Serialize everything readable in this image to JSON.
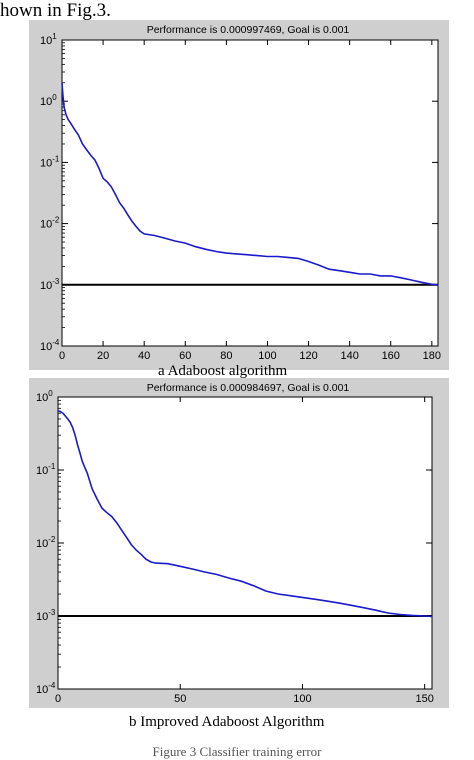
{
  "header_text": "hown in Fig.3.",
  "figure_caption": "Figure 3   Classifier training error",
  "chart_data": [
    {
      "type": "line",
      "title": "Performance is 0.000997469, Goal is 0.001",
      "caption": "a  Adaboost algorithm",
      "y_scale": "log",
      "ylim_exp": [
        -4,
        1
      ],
      "xlim": [
        0,
        183
      ],
      "x_ticks": [
        0,
        20,
        40,
        60,
        80,
        100,
        120,
        140,
        160,
        180
      ],
      "x_tick_labels": [
        "0",
        "20",
        "40",
        "60",
        "80",
        "100",
        "120",
        "140",
        "160",
        "180"
      ],
      "y_ticks_exp": [
        -4,
        -3,
        -2,
        -1,
        0,
        1
      ],
      "goal": 0.001,
      "series": [
        {
          "color": "#1a1acc",
          "x": [
            0,
            0.5,
            1,
            2,
            3,
            4,
            6,
            8,
            10,
            12,
            14,
            16,
            18,
            20,
            22,
            24,
            26,
            28,
            30,
            32,
            34,
            36,
            38,
            40,
            45,
            50,
            55,
            60,
            65,
            70,
            75,
            80,
            85,
            90,
            95,
            100,
            105,
            110,
            115,
            120,
            125,
            130,
            135,
            140,
            145,
            150,
            155,
            160,
            165,
            170,
            175,
            180,
            183
          ],
          "y": [
            2.0,
            1.2,
            0.8,
            0.6,
            0.5,
            0.45,
            0.35,
            0.28,
            0.2,
            0.16,
            0.13,
            0.11,
            0.08,
            0.055,
            0.048,
            0.04,
            0.03,
            0.022,
            0.018,
            0.014,
            0.011,
            0.009,
            0.0075,
            0.0068,
            0.0064,
            0.0058,
            0.0052,
            0.0048,
            0.0042,
            0.0038,
            0.0035,
            0.0033,
            0.0032,
            0.0031,
            0.003,
            0.0029,
            0.0029,
            0.0028,
            0.0027,
            0.0024,
            0.0021,
            0.0018,
            0.0017,
            0.0016,
            0.0015,
            0.0015,
            0.0014,
            0.0014,
            0.0013,
            0.0012,
            0.0011,
            0.00102,
            0.000997
          ]
        }
      ]
    },
    {
      "type": "line",
      "title": "Performance is 0.000984697, Goal is 0.001",
      "caption": "b  Improved Adaboost Algorithm",
      "y_scale": "log",
      "ylim_exp": [
        -4,
        0
      ],
      "xlim": [
        0,
        153
      ],
      "x_ticks": [
        0,
        50,
        100,
        150
      ],
      "x_tick_labels": [
        "0",
        "50",
        "100",
        "150"
      ],
      "y_ticks_exp": [
        -4,
        -3,
        -2,
        -1,
        0
      ],
      "goal": 0.001,
      "series": [
        {
          "color": "#1a1acc",
          "x": [
            0,
            1,
            2,
            3,
            4,
            5,
            6,
            7,
            8,
            9,
            10,
            12,
            14,
            16,
            18,
            20,
            22,
            24,
            26,
            28,
            30,
            32,
            34,
            36,
            38,
            40,
            45,
            50,
            55,
            60,
            65,
            70,
            75,
            80,
            85,
            90,
            95,
            100,
            105,
            110,
            115,
            120,
            125,
            130,
            135,
            140,
            145,
            150,
            153
          ],
          "y": [
            0.65,
            0.63,
            0.6,
            0.55,
            0.5,
            0.45,
            0.38,
            0.3,
            0.22,
            0.17,
            0.13,
            0.09,
            0.055,
            0.04,
            0.03,
            0.026,
            0.023,
            0.019,
            0.015,
            0.012,
            0.0095,
            0.008,
            0.007,
            0.006,
            0.0055,
            0.0053,
            0.0052,
            0.0048,
            0.0044,
            0.004,
            0.0037,
            0.0033,
            0.003,
            0.0026,
            0.0022,
            0.002,
            0.0019,
            0.0018,
            0.0017,
            0.0016,
            0.0015,
            0.0014,
            0.0013,
            0.0012,
            0.0011,
            0.00105,
            0.00102,
            0.001,
            0.000985
          ]
        }
      ]
    }
  ]
}
